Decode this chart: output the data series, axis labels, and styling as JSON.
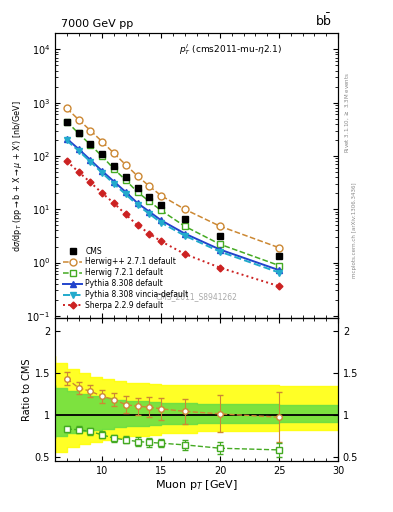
{
  "title_left": "7000 GeV pp",
  "title_right": "b$\\bar{\\mathrm{b}}$",
  "annotation": "$p^l_T$ (cms2011-mu-\\eta2.1)",
  "watermark": "CMS_2011_S8941262",
  "ylabel_main": "d$\\sigma$/dp$_T$ (pp$\\rightarrow$b + X$\\rightarrow\\mu$ + X$^\\prime$) [nb/GeV]",
  "ylabel_ratio": "Ratio to CMS",
  "xlabel": "Muon p$_T$ [GeV]",
  "right_label": "Rivet 3.1.10, \\u2265 3.3M events",
  "right_label2": "mcplots.cern.ch [arXiv:1306.3436]",
  "xlim": [
    6,
    30
  ],
  "ylim_main": [
    0.09,
    20000
  ],
  "ylim_ratio": [
    0.45,
    2.15
  ],
  "ratio_yticks": [
    0.5,
    1.0,
    1.5,
    2.0
  ],
  "cms_x": [
    7,
    8,
    9,
    10,
    11,
    12,
    13,
    14,
    15,
    17,
    20,
    25
  ],
  "cms_y": [
    430,
    270,
    170,
    110,
    65,
    40,
    25,
    17,
    12,
    6.5,
    3.2,
    1.3
  ],
  "herwig_pp_x": [
    7,
    8,
    9,
    10,
    11,
    12,
    13,
    14,
    15,
    17,
    20,
    25
  ],
  "herwig_pp_y": [
    780,
    480,
    300,
    185,
    112,
    68,
    42,
    27,
    18,
    10,
    4.8,
    1.9
  ],
  "herwig_pp_color": "#cc8833",
  "herwig_pp_ratio": [
    1.43,
    1.32,
    1.28,
    1.22,
    1.18,
    1.12,
    1.1,
    1.09,
    1.07,
    1.04,
    1.01,
    0.97
  ],
  "herwig_pp_ratio_err": [
    0.08,
    0.07,
    0.07,
    0.08,
    0.08,
    0.1,
    0.1,
    0.12,
    0.13,
    0.15,
    0.22,
    0.3
  ],
  "herwig72_x": [
    7,
    8,
    9,
    10,
    11,
    12,
    13,
    14,
    15,
    17,
    20,
    25
  ],
  "herwig72_y": [
    440,
    265,
    162,
    98,
    57,
    35,
    21,
    14,
    9.5,
    4.8,
    2.2,
    0.88
  ],
  "herwig72_color": "#44aa22",
  "herwig72_ratio": [
    0.83,
    0.82,
    0.8,
    0.76,
    0.72,
    0.7,
    0.68,
    0.67,
    0.66,
    0.64,
    0.6,
    0.58
  ],
  "herwig72_ratio_err": [
    0.04,
    0.04,
    0.04,
    0.04,
    0.04,
    0.04,
    0.05,
    0.05,
    0.05,
    0.06,
    0.07,
    0.08
  ],
  "pythia8_x": [
    7,
    8,
    9,
    10,
    11,
    12,
    13,
    14,
    15,
    17,
    20,
    25
  ],
  "pythia8_y": [
    210,
    135,
    84,
    52,
    33,
    21,
    13,
    9,
    6.2,
    3.5,
    1.75,
    0.72
  ],
  "pythia8_color": "#2244cc",
  "pythia8v_x": [
    7,
    8,
    9,
    10,
    11,
    12,
    13,
    14,
    15,
    17,
    20,
    25
  ],
  "pythia8v_y": [
    195,
    125,
    78,
    48,
    30,
    19,
    12,
    8.2,
    5.6,
    3.2,
    1.6,
    0.65
  ],
  "pythia8v_color": "#22aacc",
  "sherpa_x": [
    7,
    8,
    9,
    10,
    11,
    12,
    13,
    14,
    15,
    17,
    20,
    25
  ],
  "sherpa_y": [
    80,
    50,
    32,
    20,
    13,
    8,
    5,
    3.5,
    2.5,
    1.45,
    0.8,
    0.36
  ],
  "sherpa_color": "#cc2222",
  "band_yellow_x": [
    6,
    7,
    8,
    9,
    10,
    11,
    12,
    14,
    15,
    18,
    25,
    30
  ],
  "band_yellow_lo": [
    0.55,
    0.55,
    0.62,
    0.65,
    0.68,
    0.7,
    0.72,
    0.74,
    0.76,
    0.78,
    0.8,
    0.82
  ],
  "band_yellow_hi": [
    1.7,
    1.62,
    1.55,
    1.5,
    1.45,
    1.42,
    1.4,
    1.38,
    1.37,
    1.36,
    1.35,
    1.34
  ],
  "band_green_x": [
    6,
    7,
    8,
    9,
    10,
    11,
    12,
    14,
    15,
    18,
    25,
    30
  ],
  "band_green_lo": [
    0.72,
    0.74,
    0.78,
    0.8,
    0.82,
    0.83,
    0.85,
    0.87,
    0.88,
    0.89,
    0.9,
    0.91
  ],
  "band_green_hi": [
    1.35,
    1.32,
    1.28,
    1.25,
    1.22,
    1.2,
    1.18,
    1.16,
    1.15,
    1.14,
    1.13,
    1.12
  ]
}
